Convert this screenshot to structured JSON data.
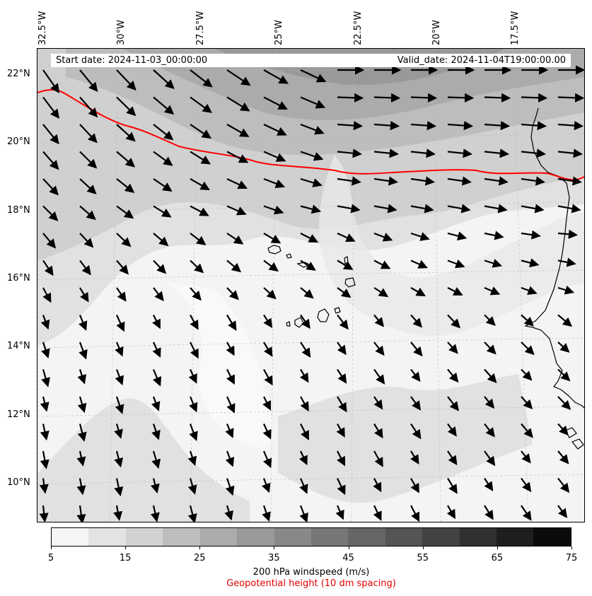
{
  "map": {
    "lon_labels": [
      "32.5°W",
      "30°W",
      "27.5°W",
      "25°W",
      "22.5°W",
      "20°W",
      "17.5°W"
    ],
    "lat_labels": [
      "22°N",
      "20°N",
      "18°N",
      "16°N",
      "14°N",
      "12°N",
      "10°N"
    ],
    "start_date": "Start date: 2024-11-03_00:00:00",
    "valid_date": "Valid_date: 2024-11-04T19:00:00.00",
    "contour_color": "#ff0000",
    "coastline_color": "#000000"
  },
  "colorbar": {
    "ticks": [
      "5",
      "15",
      "25",
      "35",
      "45",
      "55",
      "65",
      "75"
    ],
    "colors": [
      "#f5f5f5",
      "#e3e3e3",
      "#d2d2d2",
      "#bebebe",
      "#ababab",
      "#999999",
      "#888888",
      "#777777",
      "#666666",
      "#545454",
      "#434343",
      "#303030",
      "#1e1e1e",
      "#0b0b0b"
    ],
    "label": "200 hPa windspeed (m/s)",
    "sublabel": "Geopotential height (10 dm spacing)"
  }
}
